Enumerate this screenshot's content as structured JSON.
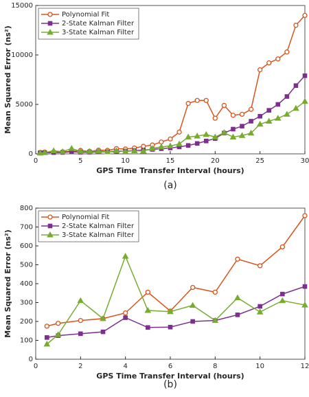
{
  "chart_data": [
    {
      "type": "line",
      "caption": "(a)",
      "xlabel": "GPS Time Transfer Interval (hours)",
      "ylabel": "Mean Squared Error (ns²)",
      "x": [
        0.5,
        1,
        2,
        3,
        4,
        5,
        6,
        7,
        8,
        9,
        10,
        11,
        12,
        13,
        14,
        15,
        16,
        17,
        18,
        19,
        20,
        21,
        22,
        23,
        24,
        25,
        26,
        27,
        28,
        29,
        30
      ],
      "xlim": [
        0,
        30
      ],
      "xticks": [
        0,
        5,
        10,
        15,
        20,
        25,
        30
      ],
      "ylim": [
        0,
        15000
      ],
      "yticks": [
        0,
        5000,
        10000,
        15000
      ],
      "legend": "upper left",
      "series": [
        {
          "name": "Polynomial Fit",
          "color": "#d95319",
          "marker": "circle",
          "values": [
            150,
            180,
            200,
            210,
            240,
            350,
            250,
            380,
            350,
            530,
            490,
            590,
            760,
            900,
            1200,
            1500,
            2200,
            5100,
            5400,
            5400,
            3600,
            4900,
            3900,
            4000,
            4500,
            8500,
            9200,
            9600,
            10300,
            13000,
            14000
          ]
        },
        {
          "name": "2-State Kalman Filter",
          "color": "#7e2f8e",
          "marker": "square",
          "values": [
            110,
            120,
            130,
            140,
            220,
            165,
            170,
            200,
            205,
            230,
            280,
            340,
            380,
            450,
            520,
            600,
            700,
            850,
            1050,
            1300,
            1550,
            2100,
            2500,
            2800,
            3300,
            3800,
            4400,
            5000,
            5800,
            6900,
            7900
          ]
        },
        {
          "name": "3-State Kalman Filter",
          "color": "#77ac30",
          "marker": "triangle",
          "values": [
            80,
            130,
            310,
            215,
            545,
            255,
            250,
            285,
            205,
            325,
            245,
            310,
            285,
            550,
            700,
            800,
            1000,
            1700,
            1800,
            1950,
            1700,
            2150,
            1700,
            1850,
            2100,
            3000,
            3300,
            3600,
            4000,
            4600,
            5300
          ]
        }
      ]
    },
    {
      "type": "line",
      "caption": "(b)",
      "xlabel": "GPS Time Transfer Interval (hours)",
      "ylabel": "Mean Squared Error (ns²)",
      "x": [
        0.5,
        1,
        2,
        3,
        4,
        5,
        6,
        7,
        8,
        9,
        10,
        11,
        12
      ],
      "xlim": [
        0,
        12
      ],
      "xticks": [
        0,
        2,
        4,
        6,
        8,
        10,
        12
      ],
      "ylim": [
        0,
        800
      ],
      "yticks": [
        0,
        100,
        200,
        300,
        400,
        500,
        600,
        700,
        800
      ],
      "legend": "upper left",
      "series": [
        {
          "name": "Polynomial Fit",
          "color": "#d95319",
          "marker": "circle",
          "values": [
            175,
            190,
            205,
            215,
            245,
            355,
            255,
            380,
            355,
            530,
            495,
            595,
            760
          ]
        },
        {
          "name": "2-State Kalman Filter",
          "color": "#7e2f8e",
          "marker": "square",
          "values": [
            115,
            125,
            135,
            145,
            220,
            168,
            170,
            200,
            205,
            235,
            280,
            345,
            385
          ]
        },
        {
          "name": "3-State Kalman Filter",
          "color": "#77ac30",
          "marker": "triangle",
          "values": [
            80,
            130,
            310,
            215,
            545,
            258,
            252,
            285,
            205,
            325,
            250,
            310,
            287
          ]
        }
      ]
    }
  ]
}
